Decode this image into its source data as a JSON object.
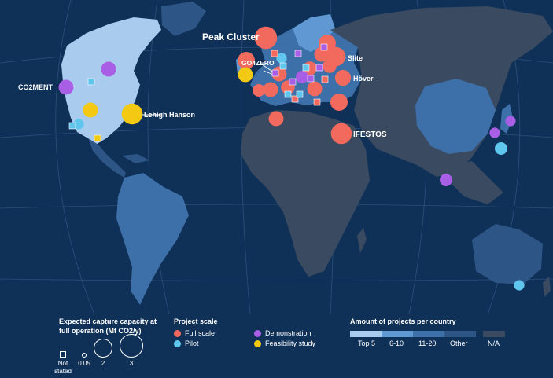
{
  "colors": {
    "ocean": "#0f3158",
    "full_scale": "#f26a5e",
    "pilot": "#5fc6ee",
    "demonstration": "#a95ee6",
    "feasibility": "#f3c913",
    "top5": "#a9cbee",
    "r6_10": "#5f98d3",
    "r11_20": "#3d6fa8",
    "other": "#2d5687",
    "na": "#3a4a60"
  },
  "labels": {
    "peak_cluster": "Peak Cluster",
    "go4zero": "GO4ZERO",
    "slite": "Slite",
    "hover": "Höver",
    "co2ment": "CO2MENT",
    "lehigh_hanson": "Lehigh Hanson",
    "ifestos": "IFESTOS"
  },
  "markers": [
    {
      "type": "full_scale",
      "size": 3
    },
    {
      "type": "full_scale",
      "size": 1.5
    },
    {
      "type": "full_scale",
      "size": 2
    },
    {
      "type": "full_scale",
      "size": 1.2
    },
    {
      "type": "full_scale",
      "size": 1.5
    },
    {
      "type": "full_scale",
      "size": 1.0
    },
    {
      "type": "full_scale",
      "size": 0.8
    },
    {
      "type": "full_scale",
      "size": 1.0
    },
    {
      "type": "full_scale",
      "size": 1.0
    },
    {
      "type": "full_scale",
      "size": 0.8
    },
    {
      "type": "full_scale",
      "size": 1.0
    },
    {
      "type": "full_scale",
      "size": 1.5
    },
    {
      "type": "full_scale",
      "size": 1.0
    },
    {
      "type": "full_scale",
      "size": 2.5
    },
    {
      "type": "full_scale",
      "size": 0.8
    },
    {
      "type": "full_scale",
      "size": 0.6
    },
    {
      "type": "feasibility",
      "size": 1.0
    },
    {
      "type": "feasibility",
      "size": 1.0
    },
    {
      "type": "feasibility",
      "size": 2.5
    },
    {
      "type": "demonstration",
      "size": 1.0
    },
    {
      "type": "demonstration",
      "size": 1.0
    },
    {
      "type": "demonstration",
      "size": 0.6
    },
    {
      "type": "demonstration",
      "size": 0.6
    },
    {
      "type": "demonstration",
      "size": 0.3
    },
    {
      "type": "demonstration",
      "size": 0.3
    },
    {
      "type": "pilot",
      "size": 0.6
    },
    {
      "type": "pilot",
      "size": 0.3
    },
    {
      "type": "pilot",
      "size": 0.3
    },
    {
      "type": "pilot",
      "size": 0.3
    }
  ],
  "legend": {
    "capacity_title_1": "Expected capture capacity at",
    "capacity_title_2": "full operation (Mt CO2/y)",
    "not_stated_1": "Not",
    "not_stated_2": "stated",
    "v005": "0.05",
    "v2": "2",
    "v3": "3",
    "scale_title": "Project scale",
    "full_scale": "Full scale",
    "pilot": "Pilot",
    "demonstration": "Demonstration",
    "feasibility": "Feasibility study",
    "amount_title": "Amount of projects per country",
    "top5": "Top 5",
    "r6_10": "6-10",
    "r11_20": "11-20",
    "other": "Other",
    "na": "N/A"
  }
}
